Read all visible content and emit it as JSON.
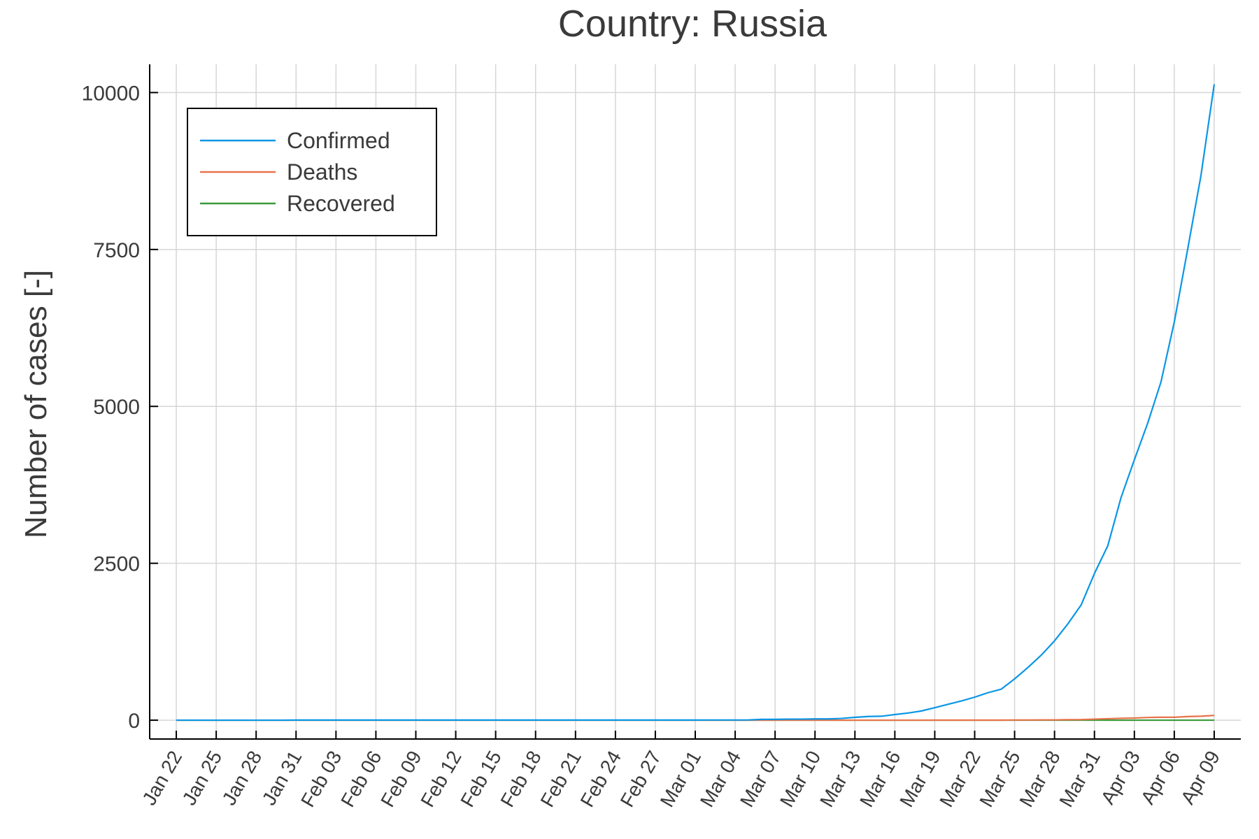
{
  "chart_data": {
    "type": "line",
    "title": "Country: Russia",
    "xlabel": "",
    "ylabel": "Number of cases [-]",
    "x_tick_labels": [
      "Jan 22",
      "Jan 25",
      "Jan 28",
      "Jan 31",
      "Feb 03",
      "Feb 06",
      "Feb 09",
      "Feb 12",
      "Feb 15",
      "Feb 18",
      "Feb 21",
      "Feb 24",
      "Feb 27",
      "Mar 01",
      "Mar 04",
      "Mar 07",
      "Mar 10",
      "Mar 13",
      "Mar 16",
      "Mar 19",
      "Mar 22",
      "Mar 25",
      "Mar 28",
      "Mar 31",
      "Apr 03",
      "Apr 06",
      "Apr 09"
    ],
    "y_ticks": [
      0,
      2500,
      5000,
      7500,
      10000
    ],
    "y_tick_labels": [
      "0",
      "2500",
      "5000",
      "7500",
      "10000"
    ],
    "xlim": [
      "Jan 20",
      "Apr 11"
    ],
    "ylim": [
      -300,
      10450
    ],
    "grid": true,
    "legend_position": "top-left",
    "x": [
      "Jan 22",
      "Jan 23",
      "Jan 24",
      "Jan 25",
      "Jan 26",
      "Jan 27",
      "Jan 28",
      "Jan 29",
      "Jan 30",
      "Jan 31",
      "Feb 01",
      "Feb 02",
      "Feb 03",
      "Feb 04",
      "Feb 05",
      "Feb 06",
      "Feb 07",
      "Feb 08",
      "Feb 09",
      "Feb 10",
      "Feb 11",
      "Feb 12",
      "Feb 13",
      "Feb 14",
      "Feb 15",
      "Feb 16",
      "Feb 17",
      "Feb 18",
      "Feb 19",
      "Feb 20",
      "Feb 21",
      "Feb 22",
      "Feb 23",
      "Feb 24",
      "Feb 25",
      "Feb 26",
      "Feb 27",
      "Feb 28",
      "Feb 29",
      "Mar 01",
      "Mar 02",
      "Mar 03",
      "Mar 04",
      "Mar 05",
      "Mar 06",
      "Mar 07",
      "Mar 08",
      "Mar 09",
      "Mar 10",
      "Mar 11",
      "Mar 12",
      "Mar 13",
      "Mar 14",
      "Mar 15",
      "Mar 16",
      "Mar 17",
      "Mar 18",
      "Mar 19",
      "Mar 20",
      "Mar 21",
      "Mar 22",
      "Mar 23",
      "Mar 24",
      "Mar 25",
      "Mar 26",
      "Mar 27",
      "Mar 28",
      "Mar 29",
      "Mar 30",
      "Mar 31",
      "Apr 01",
      "Apr 02",
      "Apr 03",
      "Apr 04",
      "Apr 05",
      "Apr 06",
      "Apr 07",
      "Apr 08",
      "Apr 09"
    ],
    "series": [
      {
        "name": "Confirmed",
        "color": "#0a96e6",
        "values": [
          0,
          0,
          0,
          0,
          0,
          0,
          0,
          0,
          0,
          2,
          2,
          2,
          2,
          2,
          2,
          2,
          2,
          2,
          2,
          2,
          2,
          2,
          2,
          2,
          2,
          2,
          2,
          2,
          2,
          2,
          2,
          2,
          2,
          2,
          2,
          2,
          2,
          2,
          2,
          2,
          3,
          3,
          3,
          4,
          13,
          13,
          17,
          17,
          20,
          20,
          28,
          45,
          59,
          63,
          90,
          114,
          147,
          199,
          253,
          306,
          367,
          438,
          495,
          658,
          840,
          1036,
          1264,
          1534,
          1836,
          2337,
          2777,
          3548,
          4149,
          4731,
          5389,
          6343,
          7497,
          8672,
          10131
        ]
      },
      {
        "name": "Deaths",
        "color": "#e8734a",
        "values": [
          0,
          0,
          0,
          0,
          0,
          0,
          0,
          0,
          0,
          0,
          0,
          0,
          0,
          0,
          0,
          0,
          0,
          0,
          0,
          0,
          0,
          0,
          0,
          0,
          0,
          0,
          0,
          0,
          0,
          0,
          0,
          0,
          0,
          0,
          0,
          0,
          0,
          0,
          0,
          0,
          0,
          0,
          0,
          0,
          0,
          0,
          0,
          0,
          0,
          0,
          0,
          0,
          0,
          0,
          0,
          0,
          0,
          1,
          1,
          1,
          1,
          1,
          1,
          3,
          3,
          4,
          4,
          8,
          9,
          17,
          24,
          30,
          34,
          43,
          47,
          47,
          58,
          63,
          76
        ]
      },
      {
        "name": "Recovered",
        "color": "#3a9a3a",
        "values": [
          0,
          0,
          0,
          0,
          0,
          0,
          0,
          0,
          0,
          0,
          0,
          0,
          0,
          0,
          0,
          0,
          0,
          0,
          0,
          0,
          0,
          0,
          0,
          0,
          0,
          0,
          0,
          0,
          0,
          0,
          0,
          0,
          0,
          0,
          0,
          0,
          0,
          0,
          0,
          0,
          0,
          0,
          0,
          0,
          0,
          0,
          0,
          0,
          0,
          0,
          0,
          0,
          0,
          0,
          0,
          0,
          0,
          0,
          0,
          0,
          0,
          0,
          0,
          0,
          0,
          0,
          0,
          0,
          0,
          0,
          0,
          0,
          0,
          0,
          0,
          0,
          0,
          0,
          0
        ]
      }
    ]
  }
}
